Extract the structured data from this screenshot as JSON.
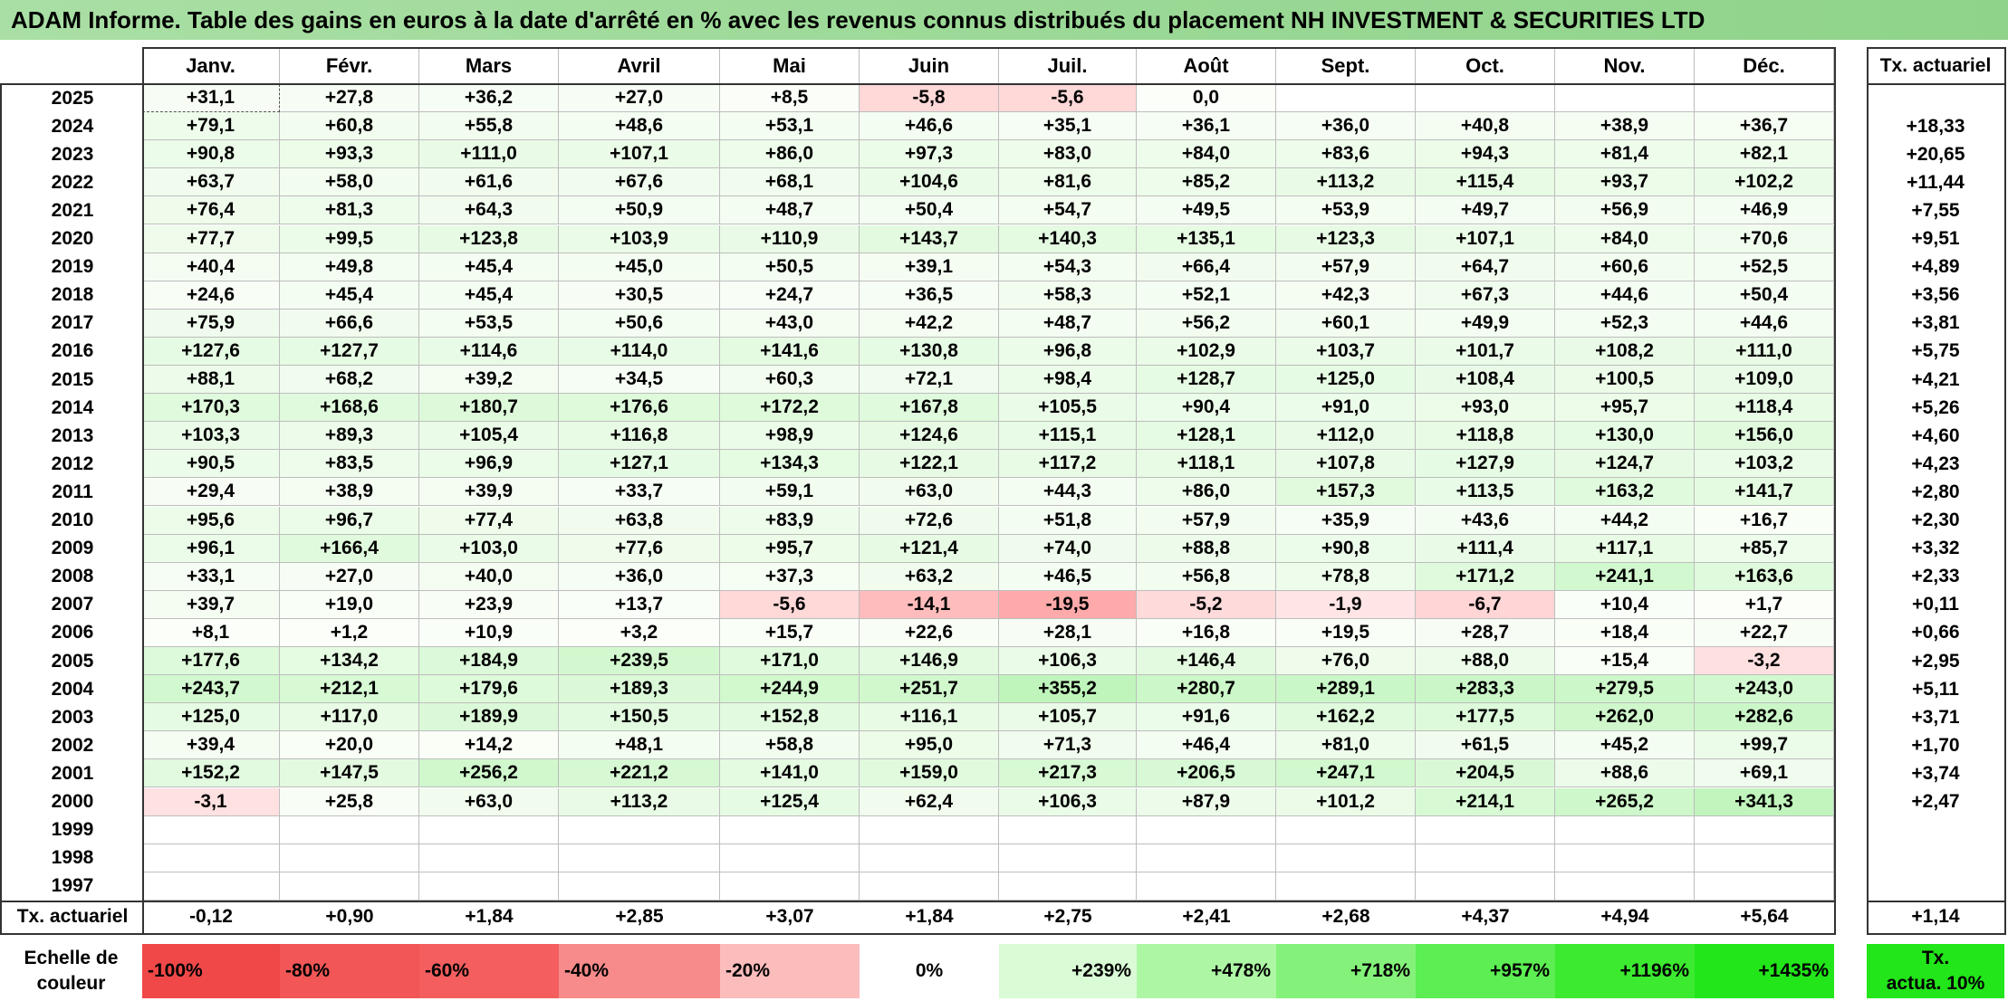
{
  "title": "ADAM Informe. Table des gains en euros à la date d'arrêté en % avec les revenus connus distribués du placement NH INVESTMENT & SECURITIES LTD",
  "months": [
    "Janv.",
    "Févr.",
    "Mars",
    "Avril",
    "Mai",
    "Juin",
    "Juil.",
    "Août",
    "Sept.",
    "Oct.",
    "Nov.",
    "Déc."
  ],
  "actuarial_header": "Tx. actuariel",
  "rows": [
    {
      "year": "2025",
      "vals": [
        "+31,1",
        "+27,8",
        "+36,2",
        "+27,0",
        "+8,5",
        "-5,8",
        "-5,6",
        "0,0",
        "",
        "",
        "",
        ""
      ],
      "act": ""
    },
    {
      "year": "2024",
      "vals": [
        "+79,1",
        "+60,8",
        "+55,8",
        "+48,6",
        "+53,1",
        "+46,6",
        "+35,1",
        "+36,1",
        "+36,0",
        "+40,8",
        "+38,9",
        "+36,7"
      ],
      "act": "+18,33"
    },
    {
      "year": "2023",
      "vals": [
        "+90,8",
        "+93,3",
        "+111,0",
        "+107,1",
        "+86,0",
        "+97,3",
        "+83,0",
        "+84,0",
        "+83,6",
        "+94,3",
        "+81,4",
        "+82,1"
      ],
      "act": "+20,65"
    },
    {
      "year": "2022",
      "vals": [
        "+63,7",
        "+58,0",
        "+61,6",
        "+67,6",
        "+68,1",
        "+104,6",
        "+81,6",
        "+85,2",
        "+113,2",
        "+115,4",
        "+93,7",
        "+102,2"
      ],
      "act": "+11,44"
    },
    {
      "year": "2021",
      "vals": [
        "+76,4",
        "+81,3",
        "+64,3",
        "+50,9",
        "+48,7",
        "+50,4",
        "+54,7",
        "+49,5",
        "+53,9",
        "+49,7",
        "+56,9",
        "+46,9"
      ],
      "act": "+7,55"
    },
    {
      "year": "2020",
      "vals": [
        "+77,7",
        "+99,5",
        "+123,8",
        "+103,9",
        "+110,9",
        "+143,7",
        "+140,3",
        "+135,1",
        "+123,3",
        "+107,1",
        "+84,0",
        "+70,6"
      ],
      "act": "+9,51"
    },
    {
      "year": "2019",
      "vals": [
        "+40,4",
        "+49,8",
        "+45,4",
        "+45,0",
        "+50,5",
        "+39,1",
        "+54,3",
        "+66,4",
        "+57,9",
        "+64,7",
        "+60,6",
        "+52,5"
      ],
      "act": "+4,89"
    },
    {
      "year": "2018",
      "vals": [
        "+24,6",
        "+45,4",
        "+45,4",
        "+30,5",
        "+24,7",
        "+36,5",
        "+58,3",
        "+52,1",
        "+42,3",
        "+67,3",
        "+44,6",
        "+50,4"
      ],
      "act": "+3,56"
    },
    {
      "year": "2017",
      "vals": [
        "+75,9",
        "+66,6",
        "+53,5",
        "+50,6",
        "+43,0",
        "+42,2",
        "+48,7",
        "+56,2",
        "+60,1",
        "+49,9",
        "+52,3",
        "+44,6"
      ],
      "act": "+3,81"
    },
    {
      "year": "2016",
      "vals": [
        "+127,6",
        "+127,7",
        "+114,6",
        "+114,0",
        "+141,6",
        "+130,8",
        "+96,8",
        "+102,9",
        "+103,7",
        "+101,7",
        "+108,2",
        "+111,0"
      ],
      "act": "+5,75"
    },
    {
      "year": "2015",
      "vals": [
        "+88,1",
        "+68,2",
        "+39,2",
        "+34,5",
        "+60,3",
        "+72,1",
        "+98,4",
        "+128,7",
        "+125,0",
        "+108,4",
        "+100,5",
        "+109,0"
      ],
      "act": "+4,21"
    },
    {
      "year": "2014",
      "vals": [
        "+170,3",
        "+168,6",
        "+180,7",
        "+176,6",
        "+172,2",
        "+167,8",
        "+105,5",
        "+90,4",
        "+91,0",
        "+93,0",
        "+95,7",
        "+118,4"
      ],
      "act": "+5,26"
    },
    {
      "year": "2013",
      "vals": [
        "+103,3",
        "+89,3",
        "+105,4",
        "+116,8",
        "+98,9",
        "+124,6",
        "+115,1",
        "+128,1",
        "+112,0",
        "+118,8",
        "+130,0",
        "+156,0"
      ],
      "act": "+4,60"
    },
    {
      "year": "2012",
      "vals": [
        "+90,5",
        "+83,5",
        "+96,9",
        "+127,1",
        "+134,3",
        "+122,1",
        "+117,2",
        "+118,1",
        "+107,8",
        "+127,9",
        "+124,7",
        "+103,2"
      ],
      "act": "+4,23"
    },
    {
      "year": "2011",
      "vals": [
        "+29,4",
        "+38,9",
        "+39,9",
        "+33,7",
        "+59,1",
        "+63,0",
        "+44,3",
        "+86,0",
        "+157,3",
        "+113,5",
        "+163,2",
        "+141,7"
      ],
      "act": "+2,80"
    },
    {
      "year": "2010",
      "vals": [
        "+95,6",
        "+96,7",
        "+77,4",
        "+63,8",
        "+83,9",
        "+72,6",
        "+51,8",
        "+57,9",
        "+35,9",
        "+43,6",
        "+44,2",
        "+16,7"
      ],
      "act": "+2,30"
    },
    {
      "year": "2009",
      "vals": [
        "+96,1",
        "+166,4",
        "+103,0",
        "+77,6",
        "+95,7",
        "+121,4",
        "+74,0",
        "+88,8",
        "+90,8",
        "+111,4",
        "+117,1",
        "+85,7"
      ],
      "act": "+3,32"
    },
    {
      "year": "2008",
      "vals": [
        "+33,1",
        "+27,0",
        "+40,0",
        "+36,0",
        "+37,3",
        "+63,2",
        "+46,5",
        "+56,8",
        "+78,8",
        "+171,2",
        "+241,1",
        "+163,6"
      ],
      "act": "+2,33"
    },
    {
      "year": "2007",
      "vals": [
        "+39,7",
        "+19,0",
        "+23,9",
        "+13,7",
        "-5,6",
        "-14,1",
        "-19,5",
        "-5,2",
        "-1,9",
        "-6,7",
        "+10,4",
        "+1,7"
      ],
      "act": "+0,11"
    },
    {
      "year": "2006",
      "vals": [
        "+8,1",
        "+1,2",
        "+10,9",
        "+3,2",
        "+15,7",
        "+22,6",
        "+28,1",
        "+16,8",
        "+19,5",
        "+28,7",
        "+18,4",
        "+22,7"
      ],
      "act": "+0,66"
    },
    {
      "year": "2005",
      "vals": [
        "+177,6",
        "+134,2",
        "+184,9",
        "+239,5",
        "+171,0",
        "+146,9",
        "+106,3",
        "+146,4",
        "+76,0",
        "+88,0",
        "+15,4",
        "-3,2"
      ],
      "act": "+2,95"
    },
    {
      "year": "2004",
      "vals": [
        "+243,7",
        "+212,1",
        "+179,6",
        "+189,3",
        "+244,9",
        "+251,7",
        "+355,2",
        "+280,7",
        "+289,1",
        "+283,3",
        "+279,5",
        "+243,0"
      ],
      "act": "+5,11"
    },
    {
      "year": "2003",
      "vals": [
        "+125,0",
        "+117,0",
        "+189,9",
        "+150,5",
        "+152,8",
        "+116,1",
        "+105,7",
        "+91,6",
        "+162,2",
        "+177,5",
        "+262,0",
        "+282,6"
      ],
      "act": "+3,71"
    },
    {
      "year": "2002",
      "vals": [
        "+39,4",
        "+20,0",
        "+14,2",
        "+48,1",
        "+58,8",
        "+95,0",
        "+71,3",
        "+46,4",
        "+81,0",
        "+61,5",
        "+45,2",
        "+99,7"
      ],
      "act": "+1,70"
    },
    {
      "year": "2001",
      "vals": [
        "+152,2",
        "+147,5",
        "+256,2",
        "+221,2",
        "+141,0",
        "+159,0",
        "+217,3",
        "+206,5",
        "+247,1",
        "+204,5",
        "+88,6",
        "+69,1"
      ],
      "act": "+3,74"
    },
    {
      "year": "2000",
      "vals": [
        "-3,1",
        "+25,8",
        "+63,0",
        "+113,2",
        "+125,4",
        "+62,4",
        "+106,3",
        "+87,9",
        "+101,2",
        "+214,1",
        "+265,2",
        "+341,3"
      ],
      "act": "+2,47"
    },
    {
      "year": "1999",
      "vals": [
        "",
        "",
        "",
        "",
        "",
        "",
        "",
        "",
        "",
        "",
        "",
        ""
      ],
      "act": ""
    },
    {
      "year": "1998",
      "vals": [
        "",
        "",
        "",
        "",
        "",
        "",
        "",
        "",
        "",
        "",
        "",
        ""
      ],
      "act": ""
    },
    {
      "year": "1997",
      "vals": [
        "",
        "",
        "",
        "",
        "",
        "",
        "",
        "",
        "",
        "",
        "",
        ""
      ],
      "act": ""
    }
  ],
  "totals": {
    "label": "Tx. actuariel",
    "vals": [
      "-0,12",
      "+0,90",
      "+1,84",
      "+2,85",
      "+3,07",
      "+1,84",
      "+2,75",
      "+2,41",
      "+2,68",
      "+4,37",
      "+4,94",
      "+5,64"
    ],
    "act": "+1,14"
  },
  "scale": {
    "label_line1": "Echelle de",
    "label_line2": "couleur",
    "items": [
      {
        "text": "-100%",
        "color": "#f04848"
      },
      {
        "text": "-80%",
        "color": "#f25656"
      },
      {
        "text": "-60%",
        "color": "#f45e5e"
      },
      {
        "text": "-40%",
        "color": "#f78a8a"
      },
      {
        "text": "-20%",
        "color": "#fbbcbc"
      },
      {
        "text": "0%",
        "color": "#ffffff"
      },
      {
        "text": "+239%",
        "color": "#d9fbd5"
      },
      {
        "text": "+478%",
        "color": "#adf7a4"
      },
      {
        "text": "+718%",
        "color": "#84f27a"
      },
      {
        "text": "+957%",
        "color": "#5cee52"
      },
      {
        "text": "+1196%",
        "color": "#3cea30"
      },
      {
        "text": "+1435%",
        "color": "#22e51a"
      }
    ],
    "act_line1": "Tx.",
    "act_line2": "actua. 10%",
    "act_color": "#22e51a"
  }
}
